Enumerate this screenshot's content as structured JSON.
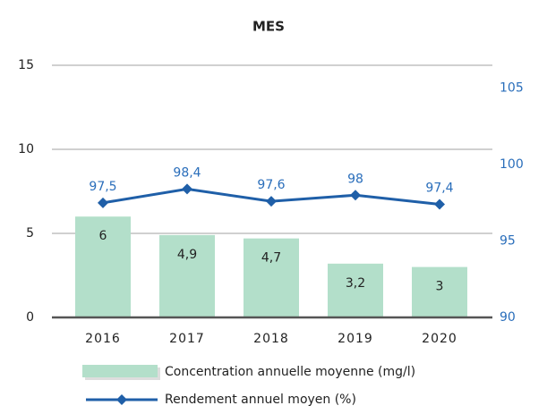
{
  "chart_data": {
    "type": "bar",
    "title": "MES",
    "categories": [
      "2016",
      "2017",
      "2018",
      "2019",
      "2020"
    ],
    "series": [
      {
        "name": "Concentration annuelle moyenne (mg/l)",
        "type": "bar",
        "color": "#b3dfca",
        "values": [
          6,
          4.9,
          4.7,
          3.2,
          3
        ],
        "value_labels": [
          "6",
          "4,9",
          "4,7",
          "3,2",
          "3"
        ]
      },
      {
        "name": "Rendement annuel moyen (%)",
        "type": "line",
        "axis": "y2",
        "color": "#1f5fa8",
        "values": [
          97.5,
          98.4,
          97.6,
          98,
          97.4
        ],
        "value_labels": [
          "97,5",
          "98,4",
          "97,6",
          "98",
          "97,4"
        ]
      }
    ],
    "ylim": [
      0,
      15
    ],
    "yticks": [
      0,
      5,
      10,
      15
    ],
    "y2lim": [
      90,
      106.5
    ],
    "y2ticks": [
      90,
      95,
      100,
      105
    ],
    "grid": true,
    "legend": "bottom"
  }
}
